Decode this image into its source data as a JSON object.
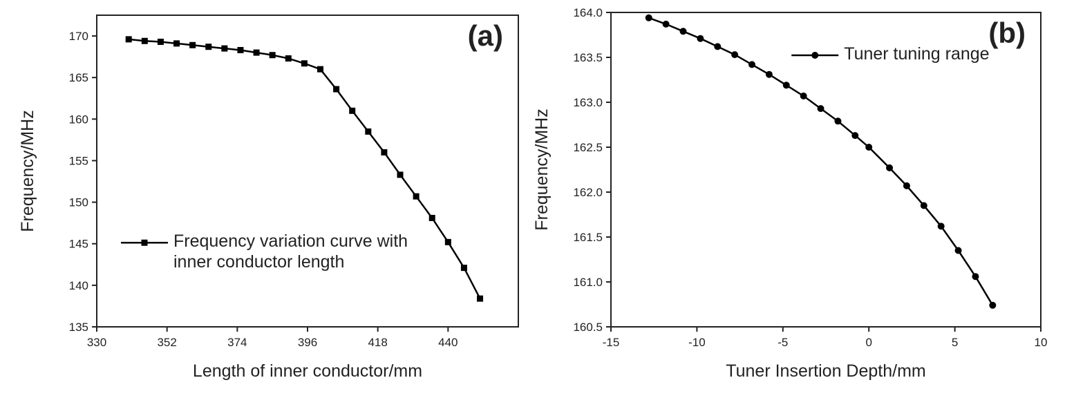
{
  "chart_data": [
    {
      "type": "line",
      "annotation": "(a)",
      "x_label": "Length of inner conductor/mm",
      "y_label": "Frequency/MHz",
      "marker": "square",
      "legend_position": "lower left",
      "grid": false,
      "xlim": [
        330,
        462
      ],
      "xticks": [
        330,
        352,
        374,
        396,
        418,
        440
      ],
      "ylim": [
        135,
        172.5
      ],
      "yticks": [
        135,
        140,
        145,
        150,
        155,
        160,
        165,
        170
      ],
      "x": [
        340,
        345,
        350,
        355,
        360,
        365,
        370,
        375,
        380,
        385,
        390,
        395,
        400,
        405,
        410,
        415,
        420,
        425,
        430,
        435,
        440,
        445,
        450
      ],
      "series": [
        {
          "name": "Frequency variation curve with inner conductor length",
          "color": "#000000",
          "values": [
            169.6,
            169.4,
            169.3,
            169.1,
            168.9,
            168.7,
            168.5,
            168.3,
            168.0,
            167.7,
            167.3,
            166.7,
            166.0,
            163.6,
            161.0,
            158.5,
            156.0,
            153.3,
            150.7,
            148.1,
            145.2,
            142.1,
            138.4
          ]
        }
      ]
    },
    {
      "type": "line",
      "annotation": "(b)",
      "x_label": "Tuner Insertion Depth/mm",
      "y_label": "Frequency/MHz",
      "marker": "circle",
      "legend_position": "upper right",
      "grid": false,
      "xlim": [
        -15,
        10
      ],
      "xticks": [
        -15,
        -10,
        -5,
        0,
        5,
        10
      ],
      "ylim": [
        160.5,
        164.0
      ],
      "yticks": [
        160.5,
        {
          "value": 161,
          "label": "161.0"
        },
        161.5,
        {
          "value": 162,
          "label": "162.0"
        },
        162.5,
        {
          "value": 163,
          "label": "163.0"
        },
        163.5,
        {
          "value": 164,
          "label": "164.0"
        }
      ],
      "x": [
        -12.8,
        -11.8,
        -10.8,
        -9.8,
        -8.8,
        -7.8,
        -6.8,
        -5.8,
        -4.8,
        -3.8,
        -2.8,
        -1.8,
        -0.8,
        0,
        1.2,
        2.2,
        3.2,
        4.2,
        5.2,
        6.2,
        7.2
      ],
      "series": [
        {
          "name": "Tuner tuning range",
          "color": "#000000",
          "values": [
            163.94,
            163.87,
            163.79,
            163.71,
            163.62,
            163.53,
            163.42,
            163.31,
            163.19,
            163.07,
            162.93,
            162.79,
            162.63,
            162.5,
            162.27,
            162.07,
            161.85,
            161.62,
            161.35,
            161.06,
            160.74
          ]
        }
      ]
    }
  ]
}
